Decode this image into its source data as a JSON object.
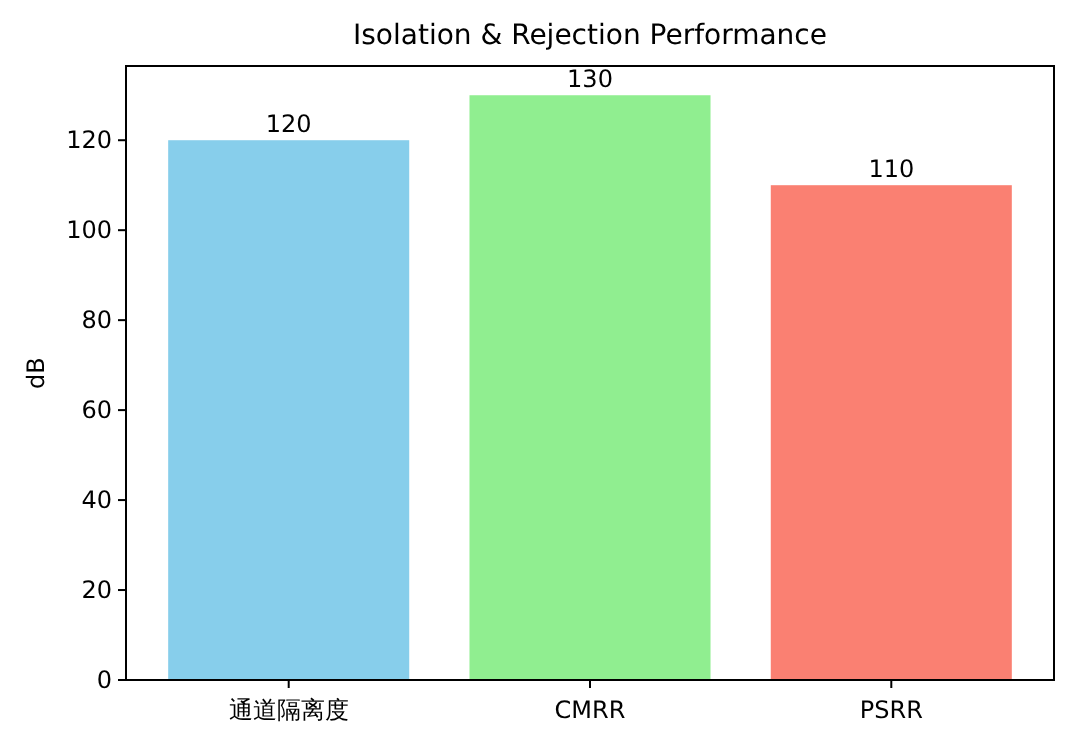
{
  "chart_data": {
    "type": "bar",
    "title": "Isolation & Rejection Performance",
    "ylabel": "dB",
    "categories": [
      "通道隔离度",
      "CMRR",
      "PSRR"
    ],
    "values": [
      120,
      130,
      110
    ],
    "colors": [
      "#87ceeb",
      "#90ee90",
      "#fa8072"
    ],
    "ylim": [
      0,
      136.5
    ],
    "yticks": [
      0,
      20,
      40,
      60,
      80,
      100,
      120
    ],
    "data_labels": true,
    "grid": false
  }
}
